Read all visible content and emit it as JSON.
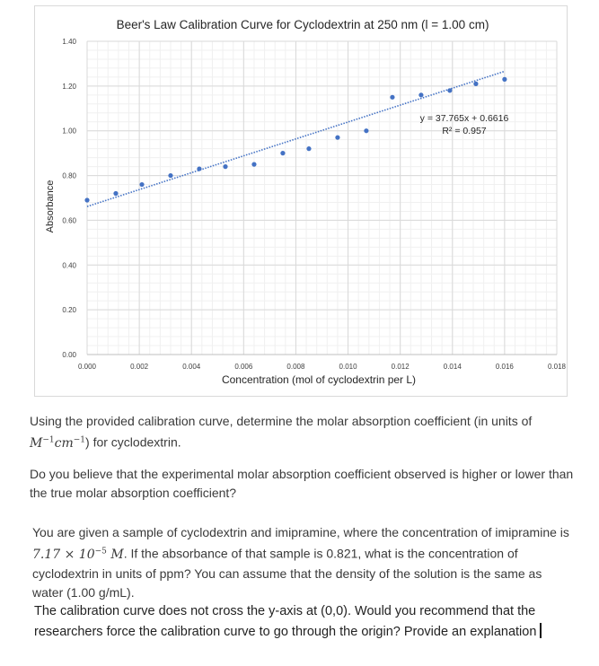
{
  "chart_data": {
    "type": "scatter",
    "title": "Beer's Law Calibration Curve for Cyclodextrin at 250 nm (l = 1.00 cm)",
    "xlabel": "Concentration (mol of cyclodextrin per L)",
    "ylabel": "Absorbance",
    "xlim": [
      0,
      0.018
    ],
    "ylim": [
      0,
      1.4
    ],
    "x_ticks": [
      "0.000",
      "0.002",
      "0.004",
      "0.006",
      "0.008",
      "0.010",
      "0.012",
      "0.014",
      "0.016",
      "0.018"
    ],
    "y_ticks": [
      "0.00",
      "0.20",
      "0.40",
      "0.60",
      "0.80",
      "1.00",
      "1.20",
      "1.40"
    ],
    "grid": true,
    "series": [
      {
        "color": "#4472c4",
        "x": [
          0.0,
          0.0011,
          0.0021,
          0.0032,
          0.0043,
          0.0053,
          0.0064,
          0.0075,
          0.0085,
          0.0096,
          0.0107,
          0.0117,
          0.0128,
          0.0139,
          0.0149,
          0.016
        ],
        "y": [
          0.69,
          0.72,
          0.76,
          0.8,
          0.83,
          0.84,
          0.85,
          0.9,
          0.92,
          0.97,
          1.0,
          1.15,
          1.16,
          1.18,
          1.21,
          1.23
        ]
      }
    ],
    "trendline": {
      "slope": 37.765,
      "intercept": 0.6616,
      "x_range": [
        0,
        0.016
      ],
      "color": "#4472c4",
      "style": "dotted"
    },
    "annotation": {
      "equation": "y = 37.765x + 0.6616",
      "r_squared": "R² = 0.957"
    }
  },
  "questions": {
    "q1_text": "Using the provided calibration curve, determine the molar absorption coefficient (in units of",
    "q1_math_base1": "M",
    "q1_math_exp1": "−1",
    "q1_math_base2": "cm",
    "q1_math_exp2": "−1",
    "q1_tail": ") for cyclodextrin.",
    "q2_text": "Do you believe that the experimental molar absorption coefficient observed is higher or lower than the true molar absorption coefficient?",
    "q3_pre": "You are given a sample of cyclodextrin and imipramine, where the concentration of imipramine is",
    "q3_math": "7.17 × 10",
    "q3_math_exp": "−5",
    "q3_math_unit": "M",
    "q3_post": ". If the absorbance of that sample is 0.821, what is the concentration of cyclodextrin in units of ppm? You can assume that the density of the solution is the same as water (1.00 g/mL).",
    "q4_text": "The calibration curve does not cross the y-axis at (0,0). Would you recommend that the researchers force the calibration curve to go through the origin? Provide an explanation"
  }
}
